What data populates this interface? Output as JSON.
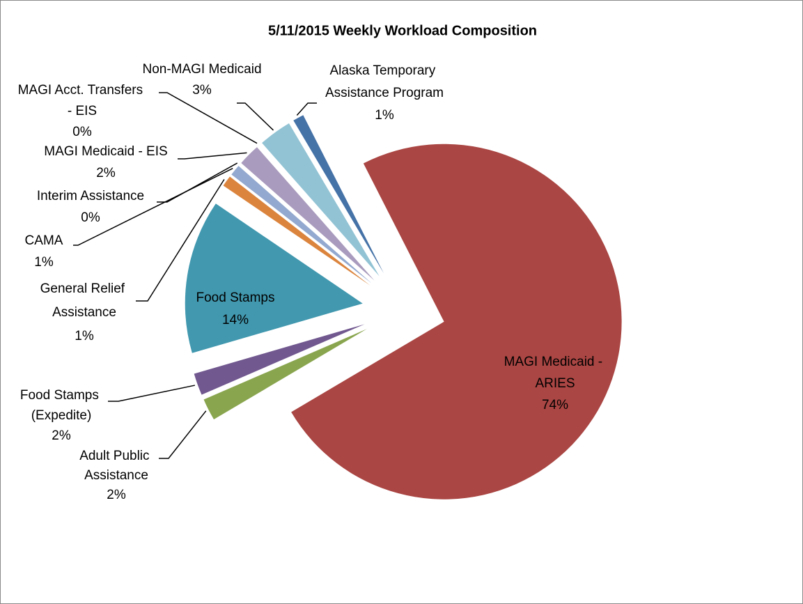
{
  "chart_data": {
    "type": "pie",
    "title": "5/11/2015 Weekly Workload Composition",
    "categories": [
      "MAGI Medicaid - ARIES",
      "Adult Public Assistance",
      "Food Stamps (Expedite)",
      "Food Stamps",
      "General Relief Assistance",
      "CAMA",
      "Interim Assistance",
      "MAGI Medicaid - EIS",
      "MAGI Acct. Transfers - EIS",
      "Non-MAGI Medicaid",
      "Alaska Temporary Assistance Program"
    ],
    "values": [
      74,
      2,
      2,
      14,
      1,
      1,
      0,
      2,
      0,
      3,
      1
    ],
    "value_labels": [
      "74%",
      "2%",
      "2%",
      "14%",
      "1%",
      "1%",
      "0%",
      "2%",
      "0%",
      "3%",
      "1%"
    ],
    "colors": [
      "#aa4643",
      "#89a54e",
      "#71588f",
      "#4198af",
      "#db843d",
      "#93a9cf",
      "#b9cd96",
      "#a99bbd",
      "#92c3d4",
      "#92c3d4",
      "#4572a7"
    ]
  }
}
